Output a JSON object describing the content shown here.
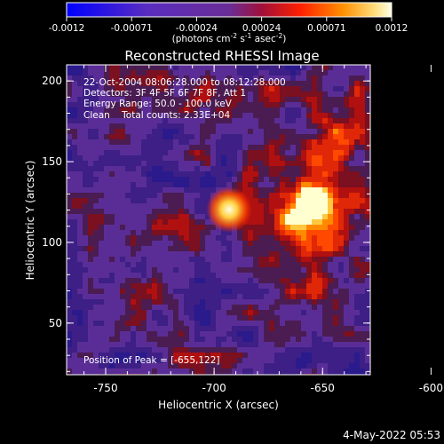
{
  "chart_data": {
    "type": "heatmap",
    "title": "Reconstructed RHESSI Image",
    "xlabel": "Heliocentric X (arcsec)",
    "ylabel": "Heliocentric Y (arcsec)",
    "xlim": [
      -768,
      -628
    ],
    "ylim": [
      18,
      210
    ],
    "x_ticks": [
      -750,
      -700,
      -650,
      -600
    ],
    "y_ticks": [
      50,
      100,
      150,
      200
    ],
    "peak": {
      "x": -655,
      "y": 122
    },
    "colorbar": {
      "range": [
        -0.0012,
        0.0012
      ],
      "ticks": [
        "-0.0012",
        "-0.00071",
        "-0.00024",
        "0.00024",
        "0.00071",
        "0.0012"
      ],
      "label_main": "(photons cm",
      "label_exp1": "-2",
      "label_mid": " s",
      "label_exp2": "-1",
      "label_after": " asec",
      "label_exp3": "-2",
      "label_end": ")"
    },
    "annotations": {
      "time_range": "22-Oct-2004 08:06:28.000 to 08:12:28.000",
      "detectors": "Detectors: 3F 4F 5F 6F 7F 8F, Att 1",
      "energy": "Energy Range: 50.0 - 100.0 keV",
      "clean": "Clean    Total counts: 2.33E+04",
      "peak_text": "Position of Peak = [-655,122]"
    },
    "footer_date": "4-May-2022 05:53",
    "colors": {
      "negative": "#0000ff",
      "background": "#6a2d96",
      "positive": "#ff3000",
      "peak": "#ffffe0"
    }
  }
}
